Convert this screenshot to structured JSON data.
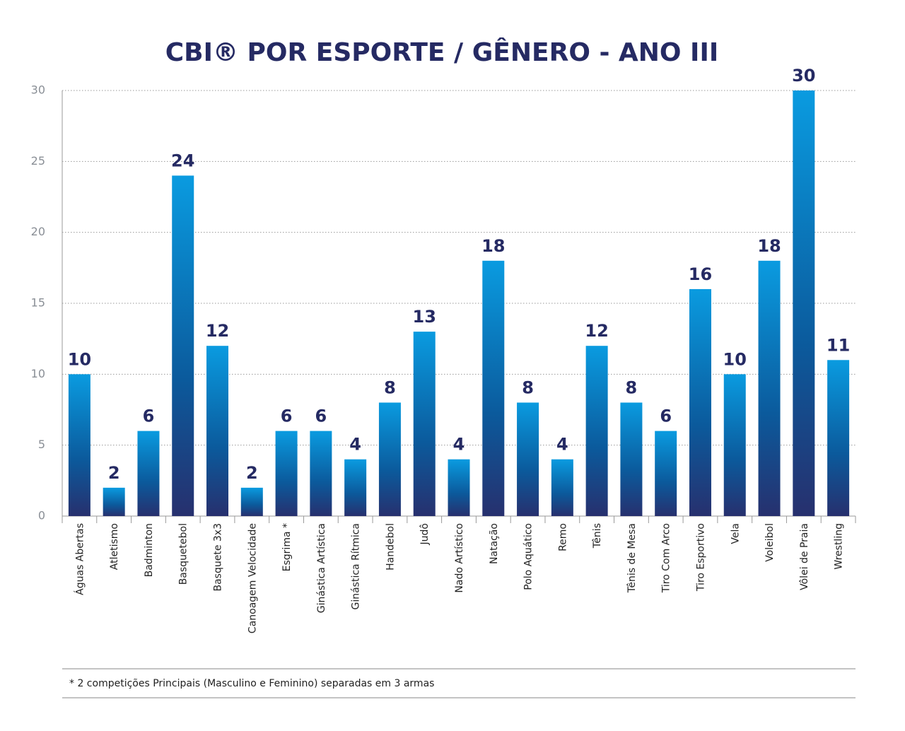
{
  "chart_data": {
    "type": "bar",
    "title": "CBI® POR ESPORTE / GÊNERO - ANO III",
    "categories": [
      "Águas Abertas",
      "Atletismo",
      "Badminton",
      "Basquetebol",
      "Basquete 3x3",
      "Canoagem Velocidade",
      "Esgrima *",
      "Ginástica Artística",
      "Ginástica Rítmica",
      "Handebol",
      "Judô",
      "Nado Artístico",
      "Natação",
      "Polo Aquático",
      "Remo",
      "Tênis",
      "Tênis de Mesa",
      "Tiro Com Arco",
      "Tiro Esportivo",
      "Vela",
      "Voleibol",
      "Vôlei de Praia",
      "Wrestling"
    ],
    "values": [
      10,
      2,
      6,
      24,
      12,
      2,
      6,
      6,
      4,
      8,
      13,
      4,
      18,
      8,
      4,
      12,
      8,
      6,
      16,
      10,
      18,
      30,
      11
    ],
    "color": "#0a9be0",
    "ylim": [
      0,
      30
    ],
    "yticks": [
      0,
      5,
      10,
      15,
      20,
      25,
      30
    ],
    "grid": true,
    "footnote": "* 2 competições Principais (Masculino e Feminino) separadas em 3 armas"
  }
}
